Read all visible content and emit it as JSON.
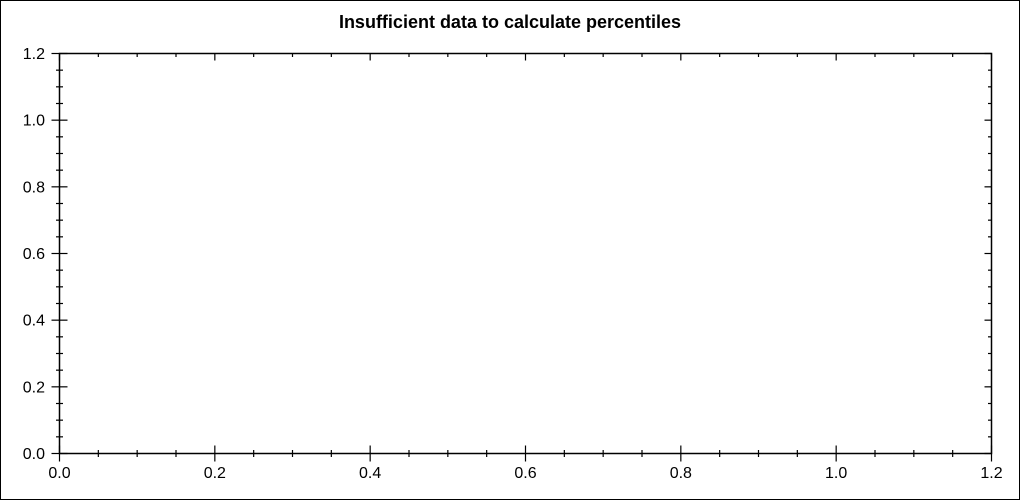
{
  "chart_data": {
    "type": "scatter",
    "title": "Insufficient data to calculate percentiles",
    "series": [],
    "xlabel": "",
    "ylabel": "",
    "xlim": [
      0,
      1.2
    ],
    "ylim": [
      0,
      1.2
    ],
    "x_major_ticks": [
      0,
      0.2,
      0.4,
      0.6,
      0.8,
      1.0,
      1.2
    ],
    "x_tick_labels": [
      "0.0",
      "0.2",
      "0.4",
      "0.6",
      "0.8",
      "1.0",
      "1.2"
    ],
    "y_major_ticks": [
      0,
      0.2,
      0.4,
      0.6,
      0.8,
      1.0,
      1.2
    ],
    "y_tick_labels": [
      "0.0",
      "0.2",
      "0.4",
      "0.6",
      "0.8",
      "1.0",
      "1.2"
    ],
    "minor_tick_step": 0.05,
    "grid": false,
    "legend": null,
    "plot_is_empty": true,
    "text_color": "#000000",
    "background_color": "#ffffff"
  }
}
